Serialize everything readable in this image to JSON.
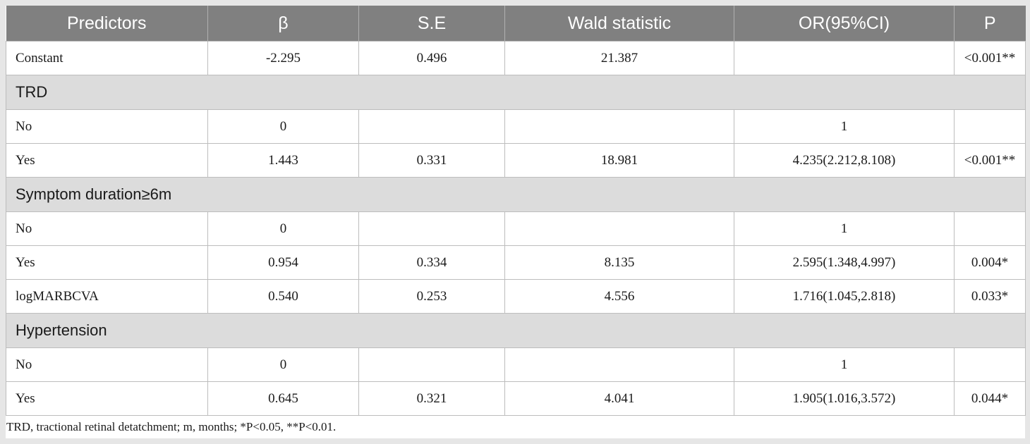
{
  "table": {
    "headers": [
      "Predictors",
      "β",
      "S.E",
      "Wald statistic",
      "OR(95%CI)",
      "P"
    ],
    "rows": [
      {
        "kind": "data",
        "cells": [
          "Constant",
          "-2.295",
          "0.496",
          "21.387",
          "",
          "<0.001**"
        ]
      },
      {
        "kind": "group",
        "label": "TRD"
      },
      {
        "kind": "data",
        "cells": [
          "No",
          "0",
          "",
          "",
          "1",
          ""
        ]
      },
      {
        "kind": "data",
        "cells": [
          "Yes",
          "1.443",
          "0.331",
          "18.981",
          "4.235(2.212,8.108)",
          "<0.001**"
        ]
      },
      {
        "kind": "group",
        "label": "Symptom duration≥6m"
      },
      {
        "kind": "data",
        "cells": [
          "No",
          "0",
          "",
          "",
          "1",
          ""
        ]
      },
      {
        "kind": "data",
        "cells": [
          "Yes",
          "0.954",
          "0.334",
          "8.135",
          "2.595(1.348,4.997)",
          "0.004*"
        ]
      },
      {
        "kind": "data",
        "cells": [
          "logMARBCVA",
          "0.540",
          "0.253",
          "4.556",
          "1.716(1.045,2.818)",
          "0.033*"
        ]
      },
      {
        "kind": "group",
        "label": "Hypertension"
      },
      {
        "kind": "data",
        "cells": [
          "No",
          "0",
          "",
          "",
          "1",
          ""
        ]
      },
      {
        "kind": "data",
        "cells": [
          "Yes",
          "0.645",
          "0.321",
          "4.041",
          "1.905(1.016,3.572)",
          "0.044*"
        ]
      }
    ]
  },
  "footnote": "TRD, tractional retinal detatchment; m, months; *P<0.05, **P<0.01."
}
